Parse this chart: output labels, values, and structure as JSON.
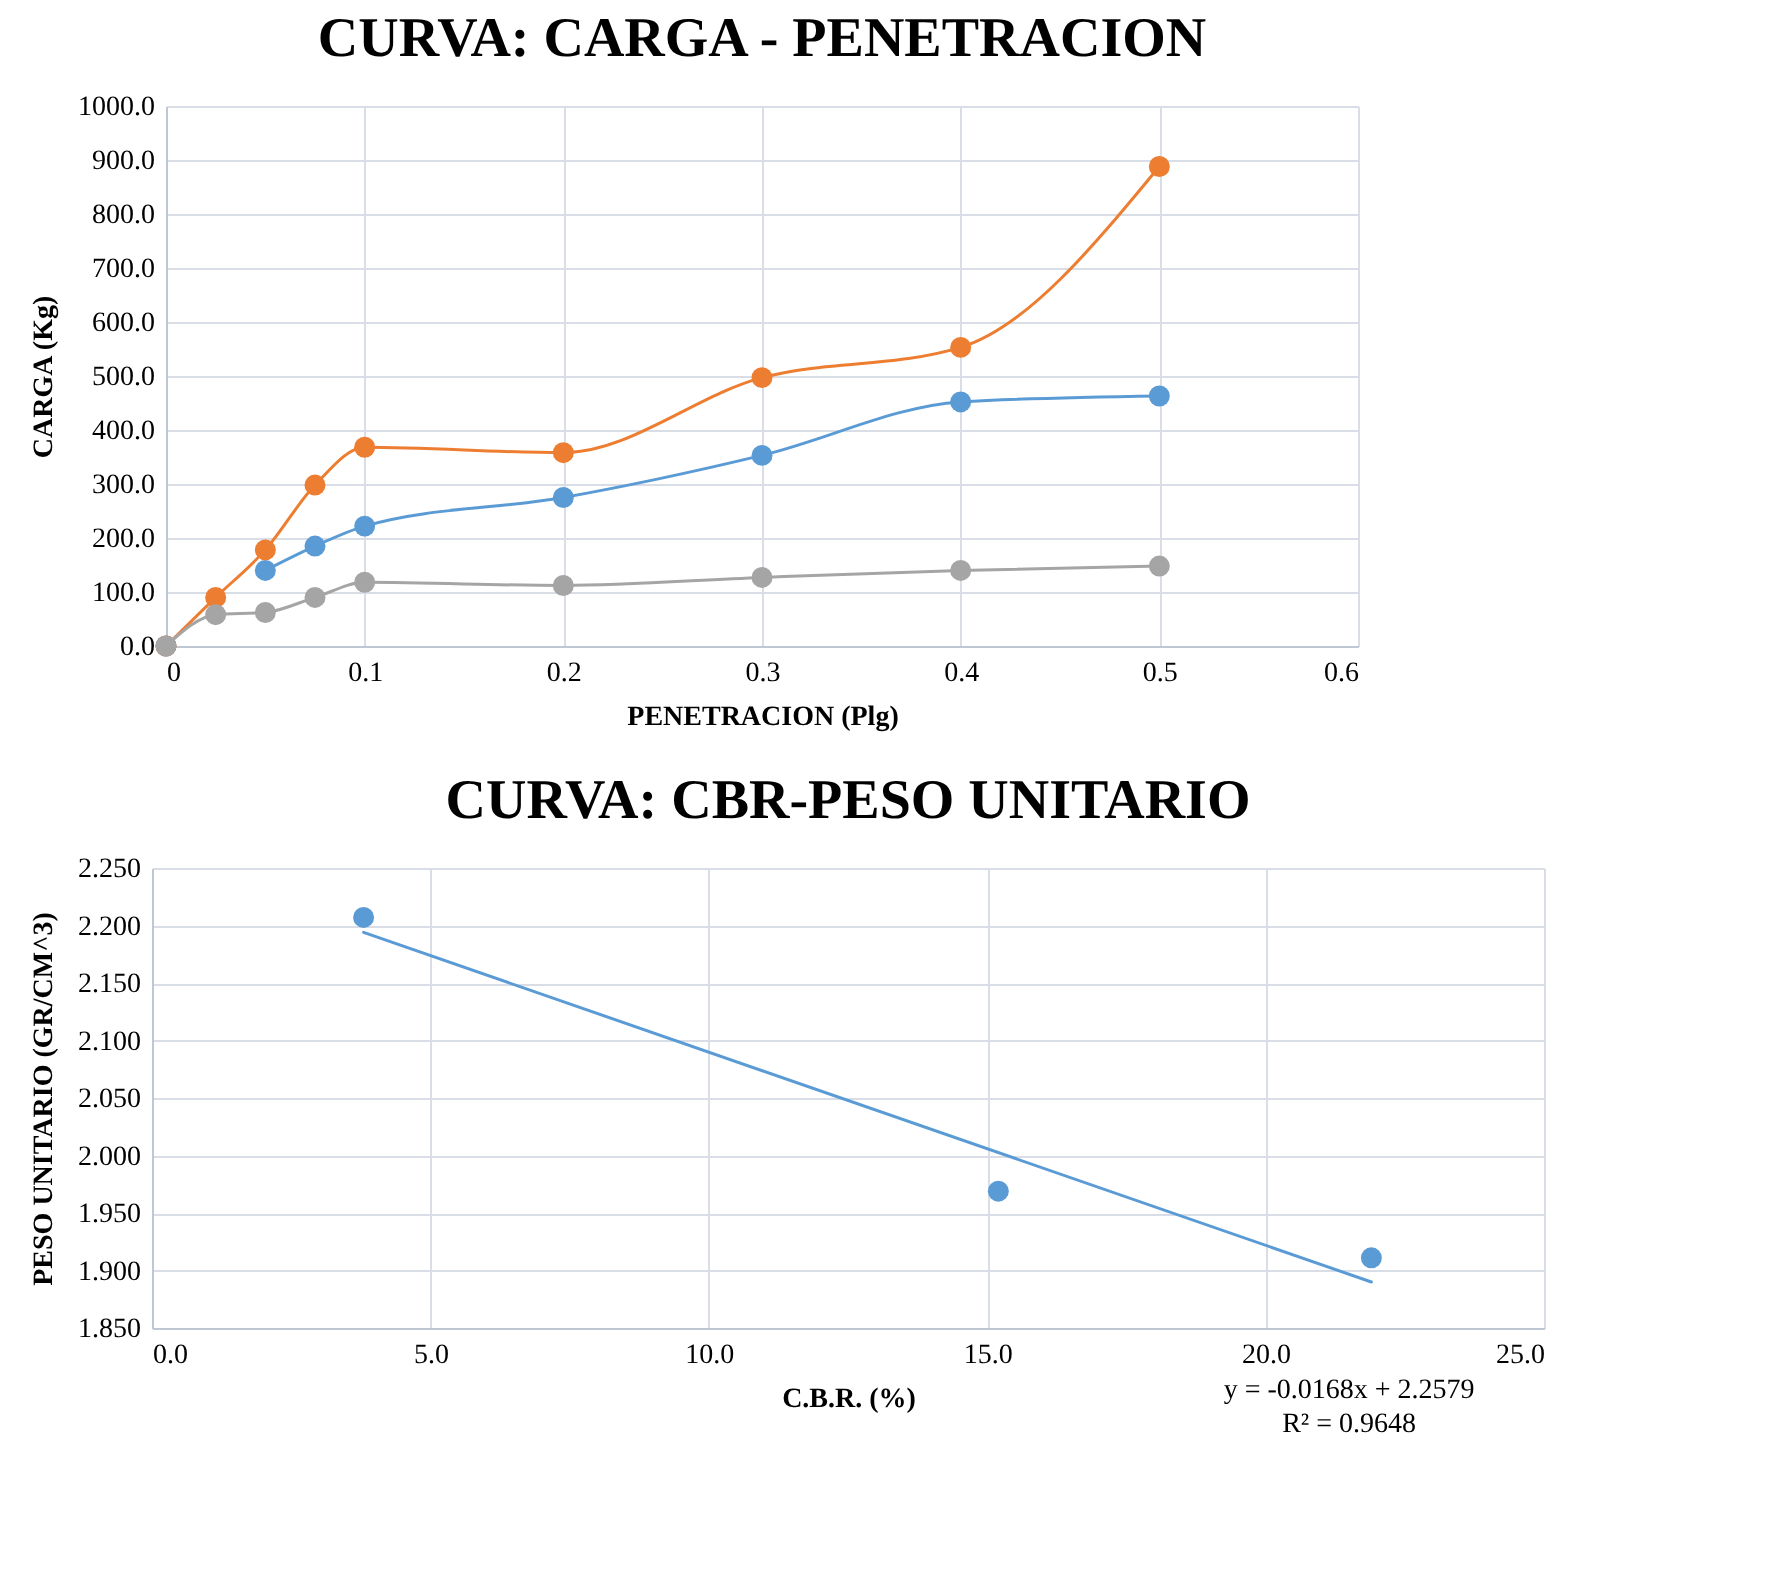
{
  "chart_data": [
    {
      "type": "line",
      "title": "CURVA: CARGA - PENETRACION",
      "xlabel": "PENETRACION (Plg)",
      "ylabel": "CARGA (Kg)",
      "x": [
        0,
        0.025,
        0.05,
        0.075,
        0.1,
        0.2,
        0.3,
        0.4,
        0.5
      ],
      "series": [
        {
          "color": "#5b9bd5",
          "values": [
            0,
            null,
            140,
            185,
            222,
            275,
            353,
            452,
            463
          ]
        },
        {
          "color": "#ed7d31",
          "values": [
            0,
            90,
            178,
            298,
            368,
            358,
            497,
            553,
            888
          ]
        },
        {
          "color": "#a5a5a5",
          "values": [
            0,
            58,
            62,
            90,
            118,
            112,
            127,
            140,
            148
          ]
        }
      ],
      "xlim": [
        0,
        0.6
      ],
      "xticks": [
        0,
        0.1,
        0.2,
        0.3,
        0.4,
        0.5,
        0.6
      ],
      "ylim": [
        0,
        1000
      ],
      "yticks": [
        {
          "value": 0,
          "label": "0.0"
        },
        {
          "value": 100,
          "label": "100.0"
        },
        {
          "value": 200,
          "label": "200.0"
        },
        {
          "value": 300,
          "label": "300.0"
        },
        {
          "value": 400,
          "label": "400.0"
        },
        {
          "value": 500,
          "label": "500.0"
        },
        {
          "value": 600,
          "label": "600.0"
        },
        {
          "value": 700,
          "label": "700.0"
        },
        {
          "value": 800,
          "label": "800.0"
        },
        {
          "value": 900,
          "label": "900.0"
        },
        {
          "value": 1000,
          "label": "1000.0"
        }
      ],
      "grid": true,
      "marker": "circle"
    },
    {
      "type": "scatter",
      "title": "CURVA: CBR-PESO UNITARIO",
      "xlabel": "C.B.R. (%)",
      "ylabel": "PESO UNITARIO (GR/CM^3)",
      "series": [
        {
          "color": "#5b9bd5",
          "x": [
            3.8,
            15.2,
            21.9
          ],
          "values": [
            2.207,
            1.969,
            1.911
          ]
        },
        {
          "type": "line",
          "color": "#5b9bd5",
          "x": [
            3.8,
            21.9
          ],
          "values": [
            2.194,
            1.89
          ],
          "marker": "none"
        }
      ],
      "xlim": [
        0,
        25
      ],
      "xticks": [
        {
          "value": 0,
          "label": "0.0"
        },
        {
          "value": 5,
          "label": "5.0"
        },
        {
          "value": 10,
          "label": "10.0"
        },
        {
          "value": 15,
          "label": "15.0"
        },
        {
          "value": 20,
          "label": "20.0"
        },
        {
          "value": 25,
          "label": "25.0"
        }
      ],
      "ylim": [
        1.85,
        2.25
      ],
      "yticks": [
        {
          "value": 1.85,
          "label": "1.850"
        },
        {
          "value": 1.9,
          "label": "1.900"
        },
        {
          "value": 1.95,
          "label": "1.950"
        },
        {
          "value": 2.0,
          "label": "2.000"
        },
        {
          "value": 2.05,
          "label": "2.050"
        },
        {
          "value": 2.1,
          "label": "2.100"
        },
        {
          "value": 2.15,
          "label": "2.150"
        },
        {
          "value": 2.2,
          "label": "2.200"
        },
        {
          "value": 2.25,
          "label": "2.250"
        }
      ],
      "grid": true,
      "marker": "circle",
      "annotations": [
        "y = -0.0168x + 2.2579",
        "R² = 0.9648"
      ]
    }
  ]
}
